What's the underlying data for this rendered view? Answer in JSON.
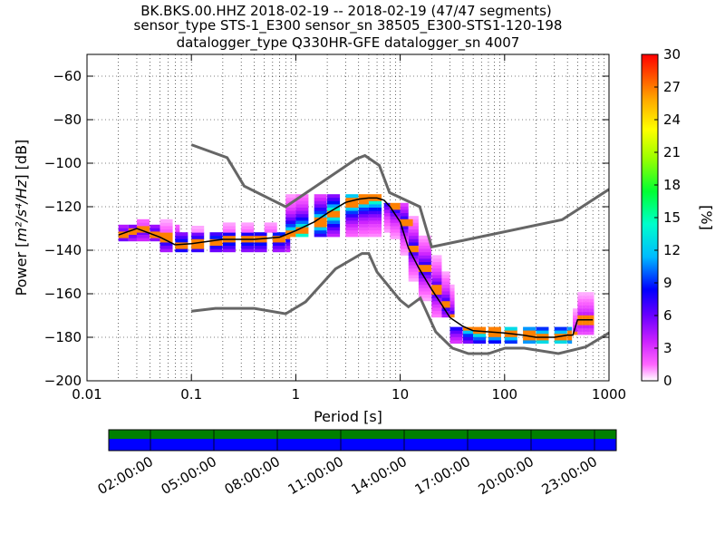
{
  "chart_data": [
    {
      "type": "heatmap",
      "title_lines": [
        "BK.BKS.00.HHZ   2018-02-19 -- 2018-02-19  (47/47 segments)",
        "sensor_type STS-1_E300 sensor_sn 38505_E300-STS1-120-198",
        "datalogger_type Q330HR-GFE datalogger_sn 4007"
      ],
      "xlabel": "Period [s]",
      "ylabel_text": "Power [",
      "ylabel_units": "m²/s⁴/Hz",
      "ylabel_close": "] [dB]",
      "xscale": "log",
      "xlim": [
        0.01,
        1000
      ],
      "ylim": [
        -200,
        -50
      ],
      "x_ticks": [
        0.01,
        0.1,
        1,
        10,
        100,
        1000
      ],
      "x_tick_labels": [
        "0.01",
        "0.1",
        "1",
        "10",
        "100",
        "1000"
      ],
      "y_ticks": [
        -200,
        -180,
        -160,
        -140,
        -120,
        -100,
        -80,
        -60
      ],
      "y_tick_labels": [
        "−200",
        "−180",
        "−160",
        "−140",
        "−120",
        "−100",
        "−80",
        "−60"
      ],
      "grid": true,
      "colorbar": {
        "label": "[%]",
        "range": [
          0,
          30
        ],
        "ticks": [
          0,
          3,
          6,
          9,
          12,
          15,
          18,
          21,
          24,
          27,
          30
        ],
        "tick_labels": [
          "0",
          "3",
          "6",
          "9",
          "12",
          "15",
          "18",
          "21",
          "24",
          "27",
          "30"
        ]
      },
      "noise_model_high": {
        "x": [
          0.1,
          0.22,
          0.32,
          0.8,
          3.8,
          4.6,
          6.3,
          7.9,
          15.4,
          20,
          354.8,
          1000
        ],
        "y": [
          -91.5,
          -97.4,
          -110.5,
          -120,
          -98,
          -96.5,
          -101,
          -113.5,
          -120,
          -138.5,
          -126,
          -112
        ]
      },
      "noise_model_low": {
        "x": [
          0.1,
          0.17,
          0.4,
          0.8,
          1.24,
          2.4,
          4.3,
          5,
          6,
          10,
          12,
          15.6,
          21.9,
          31.6,
          45,
          70,
          101,
          154,
          328,
          600,
          1000
        ],
        "y": [
          -168,
          -166.7,
          -166.7,
          -169.2,
          -163.7,
          -148.6,
          -141.5,
          -141.5,
          -150,
          -163,
          -166,
          -162,
          -177.5,
          -185,
          -187.5,
          -187.5,
          -185,
          -185,
          -187.5,
          -184.4,
          -178
        ]
      },
      "mode_curve": {
        "x": [
          0.02,
          0.03,
          0.05,
          0.07,
          0.1,
          0.2,
          0.4,
          0.7,
          1,
          1.5,
          2,
          3,
          4,
          5,
          6,
          7,
          8,
          10,
          12,
          15,
          20,
          25,
          30,
          40,
          50,
          70,
          100,
          150,
          200,
          300,
          400,
          450,
          500,
          700
        ],
        "y": [
          -133,
          -130,
          -134,
          -137.5,
          -137,
          -135,
          -135,
          -134,
          -131,
          -127,
          -123,
          -118,
          -116.5,
          -116,
          -116,
          -117,
          -120,
          -127,
          -139,
          -148,
          -158,
          -165,
          -171,
          -175,
          -177,
          -177.5,
          -178,
          -179,
          -180,
          -180,
          -179,
          -179,
          -172,
          -172
        ]
      },
      "density_bands": [
        {
          "x": [
            0.02,
            0.025,
            0.03,
            0.04,
            0.05,
            0.07
          ],
          "ymin": -135,
          "ymax": -129,
          "pct": 8
        },
        {
          "x": [
            0.05,
            0.07,
            0.1,
            0.15,
            0.2,
            0.3,
            0.4,
            0.6,
            0.8
          ],
          "ymin": -140,
          "ymax": -132,
          "pct": 12
        },
        {
          "x": [
            0.03,
            0.05,
            0.1,
            0.2,
            0.3,
            0.5,
            0.8
          ],
          "ymin": -131,
          "ymax": -126,
          "pct": 3
        },
        {
          "x": [
            0.15,
            0.2,
            0.25,
            0.3,
            0.4,
            0.5
          ],
          "ymin": -126,
          "ymax": -110,
          "pct": 1
        },
        {
          "x": [
            0.8,
            1,
            1.5,
            2,
            3,
            4,
            5,
            6
          ],
          "ymin": -133,
          "ymax": -115,
          "pct": 20
        },
        {
          "x": [
            7,
            8,
            10,
            12,
            15,
            20,
            25,
            30
          ],
          "ymin": -170,
          "ymax": -118,
          "pct": 10
        },
        {
          "x": [
            10,
            15,
            20,
            30,
            40,
            60,
            80
          ],
          "ymin": -155,
          "ymax": -120,
          "pct": 1
        },
        {
          "x": [
            30,
            40,
            50,
            70,
            100,
            150,
            200,
            300,
            400
          ],
          "ymin": -182,
          "ymax": -175,
          "pct": 18
        },
        {
          "x": [
            70,
            100,
            150,
            200,
            300,
            400
          ],
          "ymin": -172,
          "ymax": -165,
          "pct": 2
        },
        {
          "x": [
            450,
            500,
            550,
            600,
            650
          ],
          "ymin": -178,
          "ymax": -160,
          "pct": 6
        }
      ],
      "colors": {
        "noise_model": "#666666",
        "mode_line": "#000000",
        "grid": "#000000"
      }
    },
    {
      "type": "timeline",
      "tick_labels": [
        "02:00:00",
        "05:00:00",
        "08:00:00",
        "11:00:00",
        "14:00:00",
        "17:00:00",
        "20:00:00",
        "23:00:00"
      ],
      "coverage_colors": {
        "top": "#008000",
        "bottom": "#0000ff"
      }
    }
  ]
}
